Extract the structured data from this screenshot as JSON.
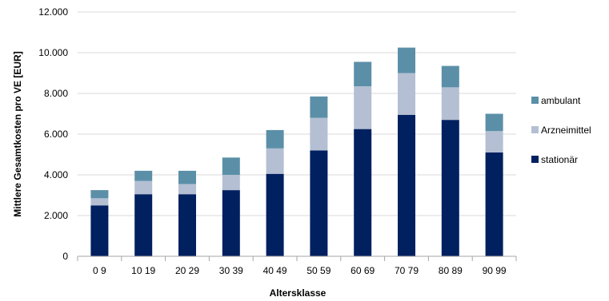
{
  "chart_data": {
    "type": "bar",
    "stacked": true,
    "title": "",
    "xlabel": "Altersklasse",
    "ylabel": "Mittlere Gesamtkosten pro VE [EUR]",
    "ylim": [
      0,
      12000
    ],
    "yticks": [
      0,
      2000,
      4000,
      6000,
      8000,
      10000,
      12000
    ],
    "ytick_labels": [
      "0",
      "2.000",
      "4.000",
      "6.000",
      "8.000",
      "10.000",
      "12.000"
    ],
    "grid": true,
    "legend_position": "right",
    "categories": [
      "0 9",
      "10 19",
      "20 29",
      "30 39",
      "40 49",
      "50 59",
      "60 69",
      "70 79",
      "80 89",
      "90 99"
    ],
    "series": [
      {
        "name": "stationär",
        "color": "#002060",
        "values": [
          2500,
          3050,
          3050,
          3250,
          4050,
          5200,
          6250,
          6950,
          6700,
          5100
        ]
      },
      {
        "name": "Arzneimittel",
        "color": "#b4bfd3",
        "values": [
          350,
          650,
          500,
          750,
          1250,
          1600,
          2100,
          2050,
          1600,
          1050
        ]
      },
      {
        "name": "ambulant",
        "color": "#5b8fa8",
        "values": [
          400,
          500,
          650,
          850,
          900,
          1050,
          1200,
          1250,
          1050,
          850
        ]
      }
    ],
    "legend_order": [
      "ambulant",
      "Arzneimittel",
      "stationär"
    ]
  }
}
